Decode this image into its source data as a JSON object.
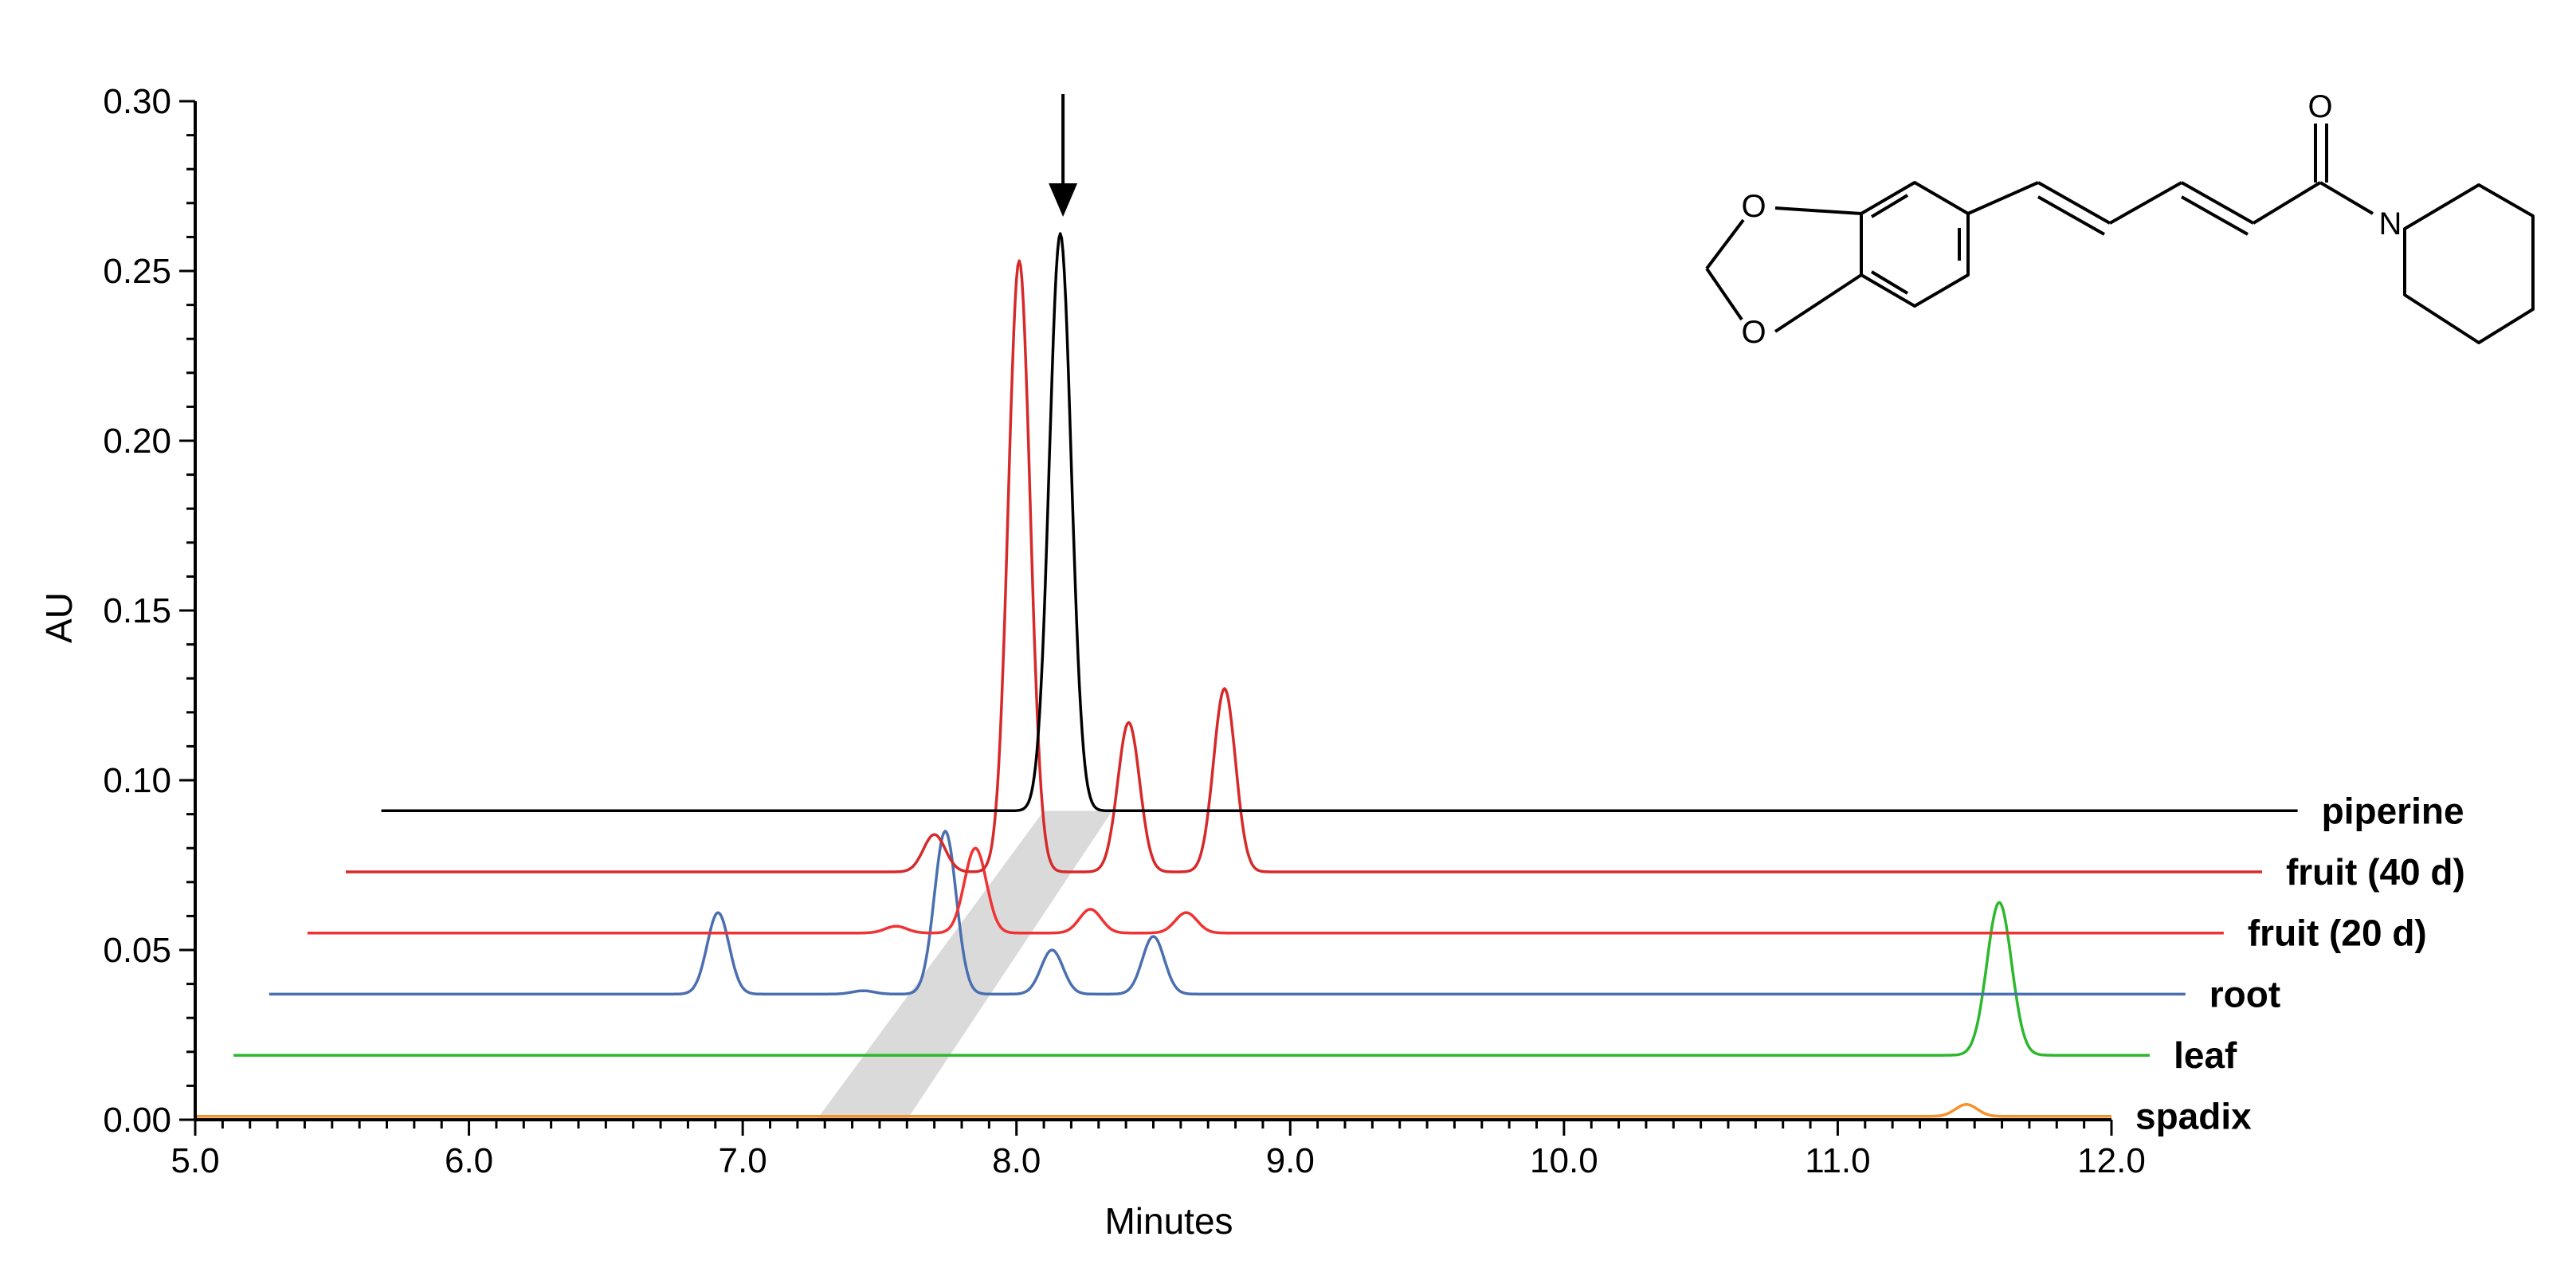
{
  "chart_data": {
    "type": "line",
    "title": "",
    "xlabel": "Minutes",
    "ylabel": "AU",
    "xlim": [
      5.0,
      12.0
    ],
    "ylim": [
      0.0,
      0.3
    ],
    "x_ticks": [
      "5.0",
      "6.0",
      "7.0",
      "8.0",
      "9.0",
      "10.0",
      "11.0",
      "12.0"
    ],
    "y_ticks": [
      "0.00",
      "0.05",
      "0.10",
      "0.15",
      "0.20",
      "0.25",
      "0.30"
    ],
    "grid": false,
    "legend": "right-end labels",
    "shaded_band": {
      "x_bottom": [
        7.27,
        7.6
      ],
      "x_top": [
        8.1,
        8.35
      ],
      "y": [
        0.0,
        0.091
      ]
    },
    "arrow_at_x": 8.17,
    "series": [
      {
        "name": "piperine",
        "color": "#000000",
        "x_start": 5.68,
        "x_end": 12.68,
        "baseline": 0.091,
        "peaks": [
          [
            8.16,
            0.261,
            0.04
          ]
        ]
      },
      {
        "name": "fruit (40 d)",
        "color": "#d62a2a",
        "x_start": 5.55,
        "x_end": 12.55,
        "baseline": 0.073,
        "peaks": [
          [
            7.7,
            0.084,
            0.04
          ],
          [
            8.01,
            0.253,
            0.04
          ],
          [
            8.41,
            0.117,
            0.04
          ],
          [
            8.76,
            0.127,
            0.04
          ]
        ]
      },
      {
        "name": "fruit (20 d)",
        "color": "#f03232",
        "x_start": 5.41,
        "x_end": 12.41,
        "baseline": 0.055,
        "peaks": [
          [
            7.56,
            0.057,
            0.04
          ],
          [
            7.85,
            0.08,
            0.04
          ],
          [
            8.27,
            0.062,
            0.04
          ],
          [
            8.62,
            0.061,
            0.04
          ]
        ]
      },
      {
        "name": "root",
        "color": "#4a6fb0",
        "x_start": 5.27,
        "x_end": 12.27,
        "baseline": 0.037,
        "peaks": [
          [
            6.91,
            0.061,
            0.04
          ],
          [
            7.44,
            0.038,
            0.04
          ],
          [
            7.74,
            0.085,
            0.04
          ],
          [
            8.13,
            0.05,
            0.04
          ],
          [
            8.5,
            0.054,
            0.04
          ]
        ]
      },
      {
        "name": "leaf",
        "color": "#2db82d",
        "x_start": 5.14,
        "x_end": 12.14,
        "baseline": 0.019,
        "peaks": [
          [
            11.59,
            0.064,
            0.045
          ]
        ]
      },
      {
        "name": "spadix",
        "color": "#f5922a",
        "x_start": 5.0,
        "x_end": 12.0,
        "baseline": 0.001,
        "peaks": [
          [
            11.47,
            0.0045,
            0.04
          ]
        ]
      }
    ]
  },
  "structure": {
    "labels": {
      "carbonyl_o": "O",
      "ring_o1": "O",
      "ring_o2": "O",
      "nitrogen": "N"
    }
  }
}
